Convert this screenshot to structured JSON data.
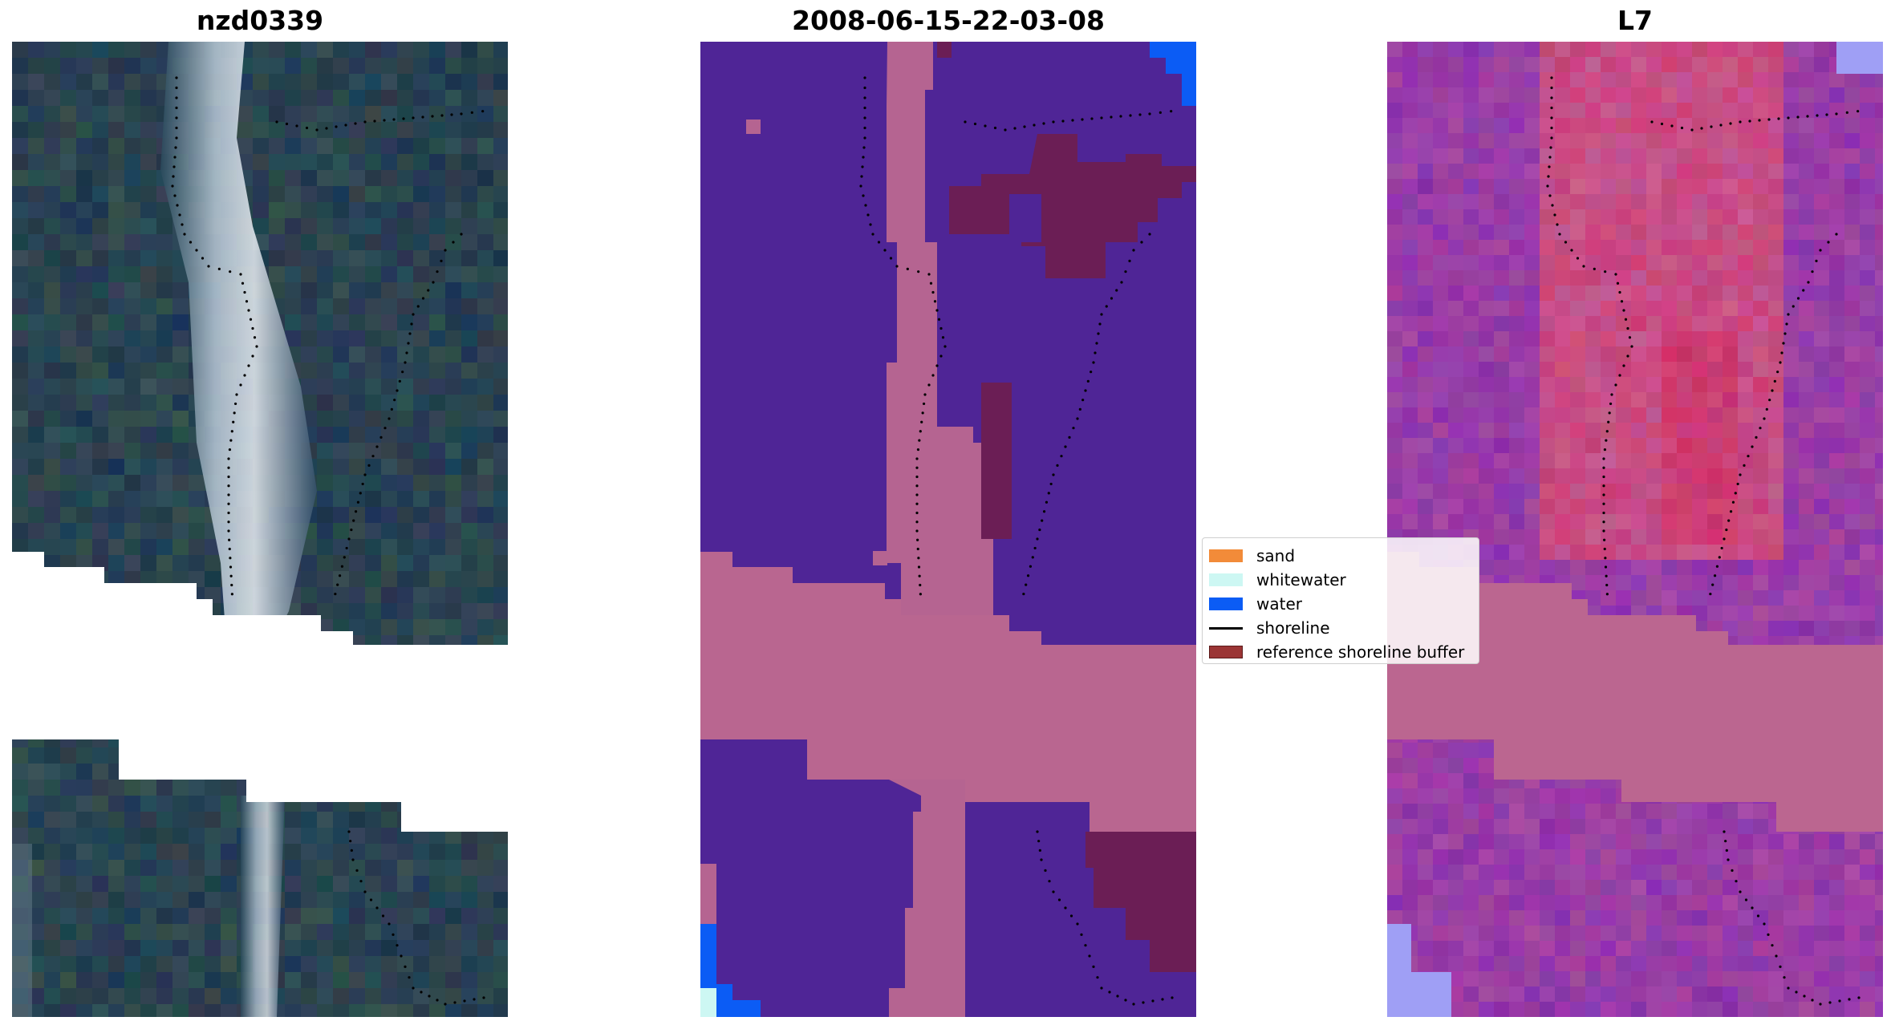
{
  "panels": [
    {
      "title": "nzd0339"
    },
    {
      "title": "2008-06-15-22-03-08"
    },
    {
      "title": "L7"
    }
  ],
  "legend": {
    "items": [
      {
        "label": "sand",
        "color": "#f28b39"
      },
      {
        "label": "whitewater",
        "color": "#cdf7f3"
      },
      {
        "label": "water",
        "color": "#0b5cf5"
      },
      {
        "label": "shoreline",
        "color": "#000000",
        "kind": "line"
      },
      {
        "label": "reference shoreline buffer",
        "color": "#9b3535"
      }
    ]
  },
  "colors": {
    "rgb_base": "#213b52",
    "rgb_bright": "#dfe9ee",
    "class_background": "#4f2596",
    "class_sand": "#b56491",
    "class_nodata": "#b96690",
    "class_buffer": "#6b1e55",
    "class_water": "#0b5cf5",
    "class_whitewater": "#cdf7f3",
    "ndwi_purple": "#8b34ad",
    "ndwi_pink": "#c45a92",
    "ndwi_red": "#cf2a5e",
    "ndwi_nodata": "#bb6690",
    "ndwi_light": "#9f9ff5"
  }
}
